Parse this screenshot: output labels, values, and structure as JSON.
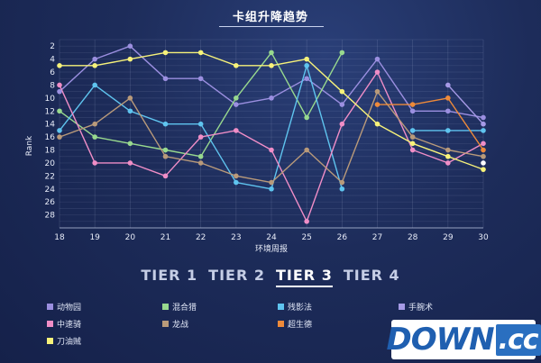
{
  "title": "卡组升降趋势",
  "tiers": [
    {
      "label": "TIER 1",
      "active": false
    },
    {
      "label": "TIER 2",
      "active": false
    },
    {
      "label": "TIER 3",
      "active": true
    },
    {
      "label": "TIER 4",
      "active": false
    }
  ],
  "watermark": {
    "main": "DOWN",
    "suffix": ".cc"
  },
  "chart_data": {
    "type": "line",
    "title": "卡组升降趋势",
    "xlabel": "环境周报",
    "ylabel": "Rank",
    "x": [
      18,
      19,
      20,
      21,
      22,
      23,
      24,
      25,
      26,
      27,
      28,
      29,
      30
    ],
    "xlim": [
      18,
      30
    ],
    "ylim": [
      30,
      1
    ],
    "y_inverted": true,
    "yticks": [
      2,
      4,
      6,
      8,
      10,
      12,
      14,
      16,
      18,
      20,
      22,
      24,
      26,
      28
    ],
    "grid": true,
    "legend_position": "bottom",
    "series": [
      {
        "name": "动物园",
        "color": "#9b8fe0",
        "values": [
          9,
          4,
          2,
          7,
          7,
          11,
          10,
          7,
          11,
          4,
          12,
          12,
          13
        ]
      },
      {
        "name": "混合猎",
        "color": "#98d98e",
        "values": [
          12,
          16,
          17,
          18,
          19,
          10,
          3,
          13,
          3,
          null,
          null,
          null,
          null
        ]
      },
      {
        "name": "残影法",
        "color": "#5fc4ef",
        "values": [
          15,
          8,
          12,
          14,
          14,
          23,
          24,
          5,
          24,
          null,
          15,
          15,
          15
        ]
      },
      {
        "name": "手腕术",
        "color": "#a69ae6",
        "values": [
          null,
          null,
          null,
          null,
          null,
          null,
          null,
          null,
          null,
          null,
          null,
          8,
          14
        ]
      },
      {
        "name": "中速骑",
        "color": "#f08ec7",
        "values": [
          8,
          20,
          20,
          22,
          16,
          15,
          18,
          29,
          14,
          6,
          18,
          20,
          17
        ]
      },
      {
        "name": "龙战",
        "color": "#b99a7a",
        "values": [
          16,
          14,
          10,
          19,
          20,
          22,
          23,
          18,
          23,
          9,
          16,
          18,
          19
        ]
      },
      {
        "name": "超生德",
        "color": "#ee8a3a",
        "values": [
          null,
          null,
          null,
          null,
          null,
          null,
          null,
          null,
          null,
          11,
          11,
          10,
          18
        ]
      },
      {
        "name": "控制牧",
        "color": "#ffffff",
        "values": [
          null,
          null,
          null,
          null,
          null,
          null,
          null,
          null,
          null,
          null,
          null,
          null,
          20
        ]
      },
      {
        "name": "刀油贼",
        "color": "#f7f27a",
        "values": [
          5,
          5,
          4,
          3,
          3,
          5,
          5,
          4,
          9,
          14,
          17,
          19,
          21
        ]
      }
    ]
  }
}
